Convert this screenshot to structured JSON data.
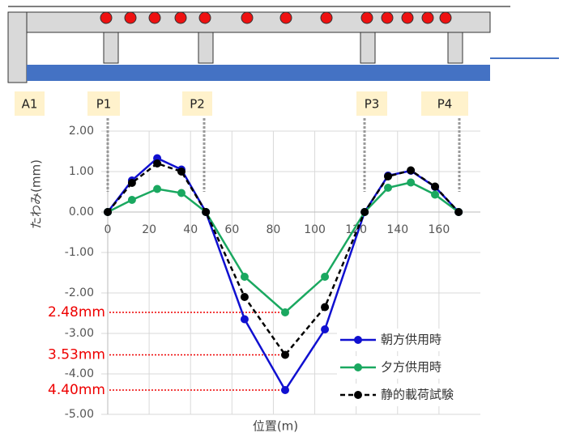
{
  "chart_data": {
    "type": "line",
    "y_label": "たわみ(mm)",
    "x_label": "位置(m)",
    "xlim": [
      0,
      180
    ],
    "xticks": [
      0,
      20,
      40,
      60,
      80,
      100,
      120,
      140,
      160
    ],
    "ylim": [
      -5,
      2
    ],
    "yticks": [
      {
        "value": 2,
        "label": "2.00"
      },
      {
        "value": 1,
        "label": "1.00"
      },
      {
        "value": 0,
        "label": "0.00"
      },
      {
        "value": -1,
        "label": "-1.00"
      },
      {
        "value": -2,
        "label": "-2.00"
      },
      {
        "value": -3,
        "label": "-3.00"
      },
      {
        "value": -4,
        "label": "-4.00"
      },
      {
        "value": -5,
        "label": "-5.00"
      }
    ],
    "grid": true,
    "legend": "lower right",
    "x": [
      0,
      11.7,
      23.9,
      35.6,
      47.4,
      66.1,
      85.7,
      104.9,
      124.1,
      135.4,
      146.4,
      158.1,
      169.5
    ],
    "series": [
      {
        "name": "朝方供用時",
        "color": "#1010d0",
        "dashed": false,
        "values": [
          0,
          0.78,
          1.33,
          1.05,
          0,
          -2.65,
          -4.4,
          -2.9,
          0,
          0.9,
          1.02,
          0.62,
          0
        ]
      },
      {
        "name": "夕方供用時",
        "color": "#1aa860",
        "dashed": false,
        "values": [
          0,
          0.3,
          0.57,
          0.47,
          0,
          -1.6,
          -2.48,
          -1.6,
          0,
          0.6,
          0.73,
          0.43,
          0
        ]
      },
      {
        "name": "静的載荷試験",
        "color": "#000000",
        "dashed": true,
        "values": [
          0,
          0.72,
          1.2,
          1.0,
          0,
          -2.1,
          -3.53,
          -2.35,
          0,
          0.88,
          1.03,
          0.63,
          0
        ]
      }
    ],
    "annotations": [
      {
        "text": "2.48mm",
        "value": -2.48
      },
      {
        "text": "3.53mm",
        "value": -3.53
      },
      {
        "text": "4.40mm",
        "value": -4.4
      }
    ],
    "pier_labels": [
      "A1",
      "P1",
      "P2",
      "P3",
      "P4"
    ]
  }
}
